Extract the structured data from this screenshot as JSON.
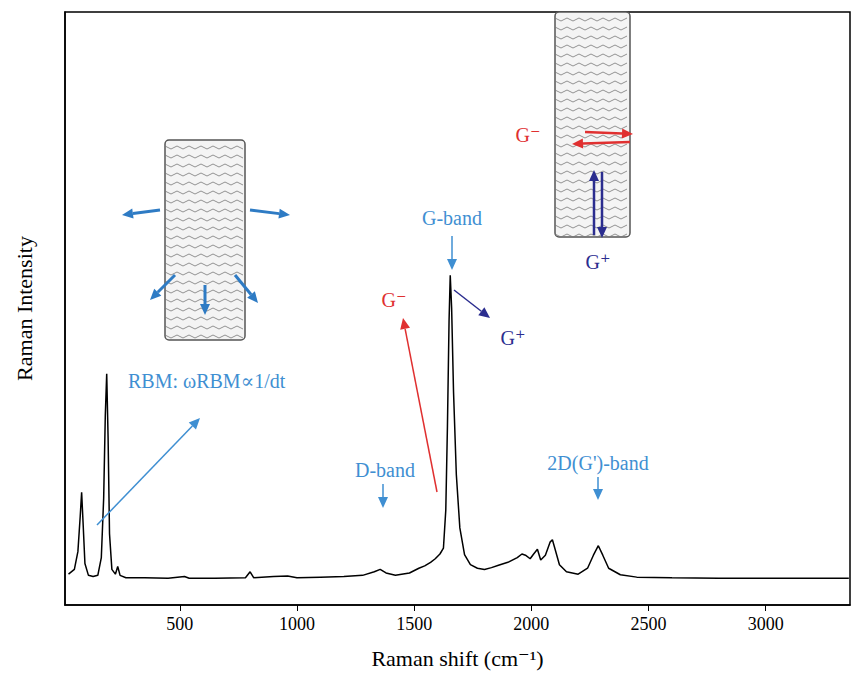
{
  "chart_data": {
    "type": "line",
    "x_label": "Raman shift (cm⁻¹)",
    "y_label": "Raman Intensity",
    "x": [
      25,
      50,
      65,
      75,
      81,
      87,
      95,
      110,
      130,
      150,
      165,
      175,
      182,
      188,
      194,
      200,
      210,
      225,
      235,
      245,
      270,
      350,
      450,
      520,
      540,
      650,
      780,
      800,
      815,
      900,
      960,
      1000,
      1100,
      1200,
      1280,
      1330,
      1355,
      1380,
      1420,
      1480,
      1520,
      1545,
      1570,
      1590,
      1610,
      1625,
      1635,
      1642,
      1649,
      1654,
      1660,
      1668,
      1680,
      1695,
      1715,
      1740,
      1770,
      1800,
      1830,
      1860,
      1900,
      1940,
      1960,
      1975,
      1995,
      2010,
      2026,
      2040,
      2060,
      2080,
      2090,
      2100,
      2120,
      2150,
      2200,
      2240,
      2265,
      2286,
      2305,
      2330,
      2380,
      2450,
      2600,
      2800,
      3000,
      3200,
      3355
    ],
    "values": [
      5.2,
      6,
      9,
      15,
      19,
      14,
      7,
      5,
      4.8,
      5,
      8,
      18,
      32,
      39,
      28,
      12,
      6,
      5.2,
      6.5,
      5,
      4.6,
      4.6,
      4.5,
      4.8,
      4.5,
      4.5,
      4.6,
      5.6,
      4.6,
      4.8,
      4.9,
      4.6,
      4.7,
      4.8,
      5.0,
      5.6,
      6.0,
      5.4,
      5.0,
      5.4,
      6.2,
      6.6,
      7.2,
      7.8,
      8.6,
      9.6,
      16,
      30,
      48,
      55.6,
      50,
      36,
      22,
      13,
      8.5,
      6.8,
      6.2,
      6.0,
      6.3,
      6.7,
      7.2,
      8.0,
      8.6,
      8.4,
      7.8,
      8.6,
      9.4,
      7.6,
      8.4,
      10.6,
      11,
      9.6,
      6.8,
      5.6,
      5.2,
      6.2,
      8.4,
      10,
      8.4,
      6.2,
      5.1,
      4.7,
      4.6,
      4.5,
      4.5,
      4.5,
      4.5
    ],
    "color": "#000000",
    "xlim": [
      10,
      3360
    ],
    "xticks": [
      500,
      1000,
      1500,
      2000,
      2500,
      3000
    ],
    "ylim": [
      0,
      100
    ],
    "tick_labels": "x",
    "grid": false,
    "annotations": [
      "RBM: ωRBM∝1/dt",
      "G-band",
      "G⁺",
      "G⁻",
      "D-band",
      "2D(G')-band",
      "G⁻",
      "G⁺"
    ]
  }
}
